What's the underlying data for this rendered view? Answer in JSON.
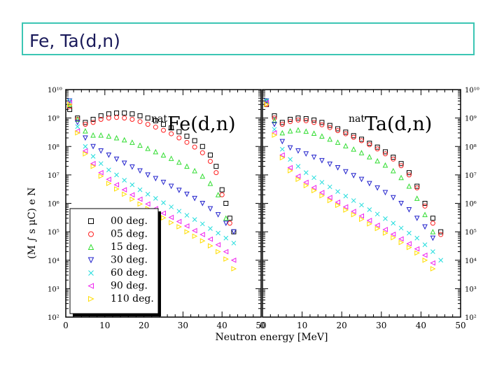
{
  "slide": {
    "title": "Fe, Ta(d,n)"
  },
  "colors": {
    "00 deg.": "#000000",
    "05 deg.": "#ff2020",
    "15 deg.": "#33dd33",
    "30 deg.": "#2222cc",
    "60 deg.": "#22dddd",
    "90 deg.": "#ee22ee",
    "110 deg.": "#ffdd00"
  },
  "chart_data": [
    {
      "type": "scatter",
      "title": "natFe(d,n)",
      "title_sup": "nat",
      "title_main": "Fe(d,n)",
      "xlabel": "Neutron energy [MeV]",
      "ylabel": "(M  ∫ s  μC)  e  N",
      "yscale": "log",
      "xlim": [
        0,
        50
      ],
      "ylim": [
        100,
        10000000000
      ],
      "x_ticks": [
        "0",
        "10",
        "20",
        "30",
        "40",
        "50"
      ],
      "y_ticks": [
        "10²",
        "10³",
        "10⁴",
        "10⁵",
        "10⁶",
        "10⁷",
        "10⁸",
        "10⁹",
        "10¹⁰"
      ],
      "legend": {
        "placement": "bottom-left",
        "entries": [
          "00 deg.",
          "05 deg.",
          "15 deg.",
          "30 deg.",
          "60 deg.",
          "90 deg.",
          "110 deg."
        ]
      },
      "series": [
        {
          "name": "00 deg.",
          "marker": "square",
          "x": [
            1,
            3,
            5,
            7,
            9,
            11,
            13,
            15,
            17,
            19,
            21,
            23,
            25,
            27,
            29,
            31,
            33,
            35,
            37,
            38.5,
            40,
            41,
            42,
            43
          ],
          "y": [
            2000000000,
            1000000000,
            700000000,
            900000000,
            1200000000,
            1400000000,
            1500000000,
            1500000000,
            1400000000,
            1200000000,
            1000000000,
            800000000,
            600000000,
            450000000,
            330000000,
            230000000,
            160000000,
            100000000,
            50000000,
            20000000,
            3000000,
            1000000,
            300000,
            100000
          ]
        },
        {
          "name": "05 deg.",
          "marker": "circle",
          "x": [
            1,
            3,
            5,
            7,
            9,
            11,
            13,
            15,
            17,
            19,
            21,
            23,
            25,
            27,
            29,
            31,
            33,
            35,
            37,
            38.5,
            40,
            42
          ],
          "y": [
            2500000000,
            900000000,
            600000000,
            700000000,
            900000000,
            1000000000,
            1050000000,
            1000000000,
            900000000,
            750000000,
            600000000,
            480000000,
            370000000,
            280000000,
            200000000,
            140000000,
            95000000,
            60000000,
            30000000,
            12000000,
            2000000,
            200000
          ]
        },
        {
          "name": "15 deg.",
          "marker": "triangle-up",
          "x": [
            1,
            3,
            5,
            7,
            9,
            11,
            13,
            15,
            17,
            19,
            21,
            23,
            25,
            27,
            29,
            31,
            33,
            35,
            37,
            39,
            41
          ],
          "y": [
            3000000000,
            900000000,
            350000000,
            250000000,
            250000000,
            230000000,
            200000000,
            170000000,
            140000000,
            110000000,
            85000000,
            65000000,
            50000000,
            38000000,
            28000000,
            20000000,
            14000000,
            9000000,
            5000000,
            2000000,
            300000
          ]
        },
        {
          "name": "30 deg.",
          "marker": "triangle-down",
          "x": [
            1,
            3,
            5,
            7,
            9,
            11,
            13,
            15,
            17,
            19,
            21,
            23,
            25,
            27,
            29,
            31,
            33,
            35,
            37,
            39,
            41,
            43
          ],
          "y": [
            4000000000,
            700000000,
            200000000,
            100000000,
            70000000,
            50000000,
            36000000,
            26000000,
            19000000,
            14000000,
            10000000,
            7500000,
            5500000,
            4000000,
            2900000,
            2100000,
            1500000,
            1000000,
            650000,
            400000,
            200000,
            100000
          ]
        },
        {
          "name": "60 deg.",
          "marker": "x",
          "x": [
            1,
            3,
            5,
            7,
            9,
            11,
            13,
            15,
            17,
            19,
            21,
            23,
            25,
            27,
            29,
            31,
            33,
            35,
            37,
            39,
            41,
            43
          ],
          "y": [
            4000000000,
            500000000,
            100000000,
            45000000,
            25000000,
            15000000,
            10000000,
            6500000,
            4500000,
            3000000,
            2100000,
            1500000,
            1050000,
            750000,
            530000,
            380000,
            270000,
            190000,
            130000,
            90000,
            60000,
            40000
          ]
        },
        {
          "name": "90 deg.",
          "marker": "triangle-left",
          "x": [
            1,
            3,
            5,
            7,
            9,
            11,
            13,
            15,
            17,
            19,
            21,
            23,
            25,
            27,
            29,
            31,
            33,
            35,
            37,
            39,
            41,
            43
          ],
          "y": [
            3500000000,
            350000000,
            70000000,
            25000000,
            12000000,
            7000000,
            4500000,
            3000000,
            2000000,
            1400000,
            950000,
            650000,
            450000,
            320000,
            230000,
            160000,
            110000,
            80000,
            55000,
            35000,
            20000,
            10000
          ]
        },
        {
          "name": "110 deg.",
          "marker": "triangle-right",
          "x": [
            1,
            3,
            5,
            7,
            9,
            11,
            13,
            15,
            17,
            19,
            21,
            23,
            25,
            27,
            29,
            31,
            33,
            35,
            37,
            39,
            41,
            43
          ],
          "y": [
            3000000000,
            300000000,
            55000000,
            20000000,
            9000000,
            5000000,
            3200000,
            2100000,
            1400000,
            950000,
            650000,
            450000,
            310000,
            210000,
            150000,
            100000,
            70000,
            48000,
            32000,
            20000,
            11000,
            5000
          ]
        }
      ]
    },
    {
      "type": "scatter",
      "title": "natTa(d,n)",
      "title_sup": "nat",
      "title_main": "Ta(d,n)",
      "xlabel": "Neutron energy [MeV]",
      "yscale": "log",
      "xlim": [
        0,
        50
      ],
      "ylim": [
        100,
        10000000000
      ],
      "x_ticks": [
        "0",
        "10",
        "20",
        "30",
        "40",
        "50"
      ],
      "y_ticks": [
        "10²",
        "10³",
        "10⁴",
        "10⁵",
        "10⁶",
        "10⁷",
        "10⁸",
        "10⁹",
        "10¹⁰"
      ],
      "series": [
        {
          "name": "00 deg.",
          "marker": "square",
          "x": [
            1,
            3,
            5,
            7,
            9,
            11,
            13,
            15,
            17,
            19,
            21,
            23,
            25,
            27,
            29,
            31,
            33,
            35,
            37,
            39,
            41,
            43,
            45
          ],
          "y": [
            3000000000,
            1200000000,
            700000000,
            900000000,
            1000000000,
            950000000,
            850000000,
            700000000,
            550000000,
            420000000,
            320000000,
            240000000,
            180000000,
            130000000,
            95000000,
            65000000,
            42000000,
            25000000,
            12000000,
            4000000,
            1000000,
            300000,
            100000
          ]
        },
        {
          "name": "05 deg.",
          "marker": "circle",
          "x": [
            1,
            3,
            5,
            7,
            9,
            11,
            13,
            15,
            17,
            19,
            21,
            23,
            25,
            27,
            29,
            31,
            33,
            35,
            37,
            39,
            41,
            43,
            45
          ],
          "y": [
            3000000000,
            1000000000,
            600000000,
            750000000,
            850000000,
            800000000,
            700000000,
            580000000,
            460000000,
            360000000,
            280000000,
            210000000,
            160000000,
            115000000,
            82000000,
            55000000,
            36000000,
            21000000,
            10000000,
            3500000,
            800000,
            200000,
            80000
          ]
        },
        {
          "name": "15 deg.",
          "marker": "triangle-up",
          "x": [
            1,
            3,
            5,
            7,
            9,
            11,
            13,
            15,
            17,
            19,
            21,
            23,
            25,
            27,
            29,
            31,
            33,
            35,
            37,
            39,
            41,
            43
          ],
          "y": [
            4000000000,
            800000000,
            300000000,
            350000000,
            380000000,
            340000000,
            290000000,
            230000000,
            180000000,
            140000000,
            105000000,
            80000000,
            60000000,
            43000000,
            31000000,
            22000000,
            14000000,
            8000000,
            4000000,
            1500000,
            400000,
            100000
          ]
        },
        {
          "name": "30 deg.",
          "marker": "triangle-down",
          "x": [
            1,
            3,
            5,
            7,
            9,
            11,
            13,
            15,
            17,
            19,
            21,
            23,
            25,
            27,
            29,
            31,
            33,
            35,
            37,
            39,
            41,
            43
          ],
          "y": [
            4000000000,
            600000000,
            150000000,
            90000000,
            70000000,
            55000000,
            42000000,
            32000000,
            24000000,
            18000000,
            13000000,
            9500000,
            7000000,
            5000000,
            3500000,
            2400000,
            1600000,
            1000000,
            600000,
            300000,
            150000,
            60000
          ]
        },
        {
          "name": "60 deg.",
          "marker": "x",
          "x": [
            1,
            3,
            5,
            7,
            9,
            11,
            13,
            15,
            17,
            19,
            21,
            23,
            25,
            27,
            29,
            31,
            33,
            35,
            37,
            39,
            41,
            43,
            45
          ],
          "y": [
            4000000000,
            400000000,
            80000000,
            35000000,
            20000000,
            12000000,
            8000000,
            5500000,
            3800000,
            2600000,
            1800000,
            1250000,
            870000,
            600000,
            420000,
            290000,
            200000,
            135000,
            90000,
            60000,
            35000,
            20000,
            10000
          ]
        },
        {
          "name": "90 deg.",
          "marker": "triangle-left",
          "x": [
            1,
            3,
            5,
            7,
            9,
            11,
            13,
            15,
            17,
            19,
            21,
            23,
            25,
            27,
            29,
            31,
            33,
            35,
            37,
            39,
            41,
            43
          ],
          "y": [
            3500000000,
            300000000,
            50000000,
            18000000,
            9000000,
            5500000,
            3600000,
            2400000,
            1600000,
            1100000,
            750000,
            520000,
            360000,
            250000,
            170000,
            120000,
            82000,
            56000,
            38000,
            25000,
            15000,
            8000
          ]
        },
        {
          "name": "110 deg.",
          "marker": "triangle-right",
          "x": [
            1,
            3,
            5,
            7,
            9,
            11,
            13,
            15,
            17,
            19,
            21,
            23,
            25,
            27,
            29,
            31,
            33,
            35,
            37,
            39,
            41,
            43
          ],
          "y": [
            3000000000,
            250000000,
            40000000,
            14000000,
            7000000,
            4200000,
            2800000,
            1850000,
            1250000,
            850000,
            580000,
            400000,
            275000,
            190000,
            130000,
            90000,
            62000,
            42000,
            28000,
            18000,
            10000,
            5000
          ]
        }
      ]
    }
  ]
}
